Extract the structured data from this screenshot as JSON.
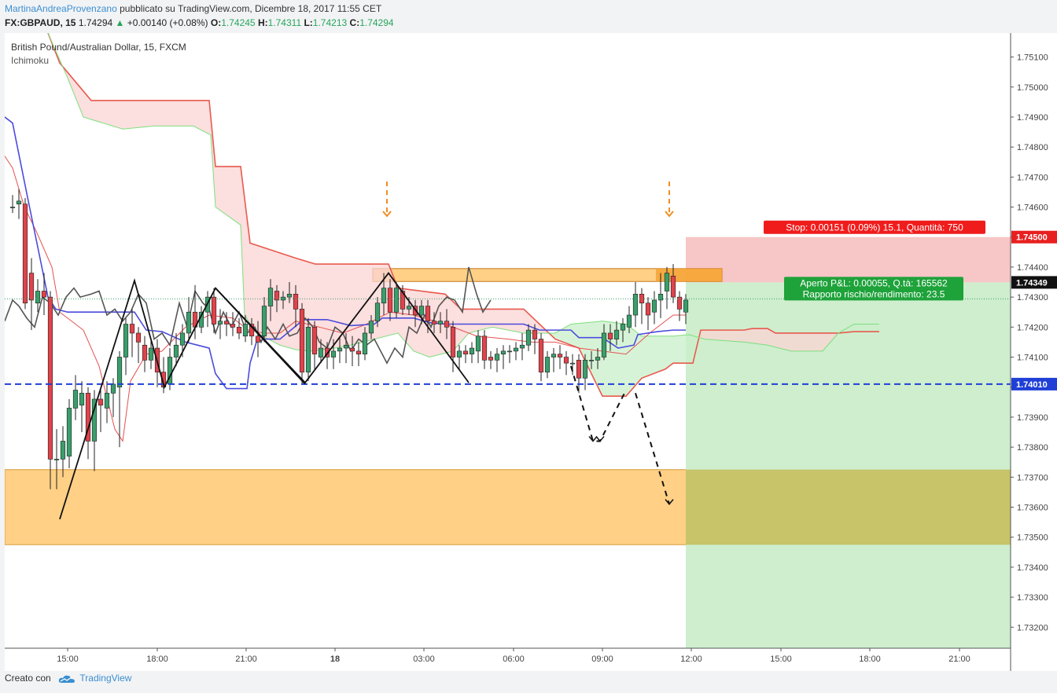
{
  "header": {
    "author": "MartinaAndreaProvenzano",
    "published": "pubblicato su TradingView.com, Dicembre 18, 2017 11:55 CET",
    "symbol": "FX:GBPAUD, 15",
    "price": "1.74294",
    "change": "+0.00140 (+0.08%)",
    "o_label": "O:",
    "o_val": "1.74245",
    "h_label": "H:",
    "h_val": "1.74311",
    "l_label": "L:",
    "l_val": "1.74213",
    "c_label": "C:",
    "c_val": "1.74294"
  },
  "legend": {
    "title": "British Pound/Australian Dollar, 15, FXCM",
    "indicator": "Ichimoku"
  },
  "footer": {
    "created": "Creato con",
    "brand": "TradingView"
  },
  "colors": {
    "bull": "#3a9e6b",
    "bear": "#e0434b",
    "conversion": "#4b4bdc",
    "base": "#e84d4d",
    "lagging": "#555555",
    "span_a": "#7ddf7d",
    "span_b": "#e85a4f",
    "zone": "#ffc870",
    "stop_zone": "#f7c6c6",
    "target_zone": "#c9ecc9",
    "entry_line": "#1f3fd6"
  },
  "chart_data": {
    "type": "candlestick",
    "title": "British Pound/Australian Dollar, 15, FXCM",
    "ylim": [
      1.7313,
      1.7518
    ],
    "y_ticks": [
      "1.75100",
      "1.75000",
      "1.74900",
      "1.74800",
      "1.74700",
      "1.74600",
      "1.74500",
      "1.74400",
      "1.74300",
      "1.74200",
      "1.74100",
      "1.74000",
      "1.73900",
      "1.73800",
      "1.73700",
      "1.73600",
      "1.73500",
      "1.73400",
      "1.73300",
      "1.73200"
    ],
    "x_ticks": [
      "15:00",
      "18:00",
      "21:00",
      "18",
      "03:00",
      "06:00",
      "09:00",
      "12:00",
      "15:00",
      "18:00",
      "21:00"
    ],
    "price_labels": [
      {
        "value": 1.745,
        "text": "1.74500",
        "color": "#e82020"
      },
      {
        "value": 1.74349,
        "text": "1.74349",
        "color": "#111111"
      },
      {
        "value": 1.7401,
        "text": "1.74010",
        "color": "#1f3fd6"
      }
    ],
    "entry_level": 1.7401,
    "stop": {
      "text": "Stop: 0.00151 (0.09%) 15.1, Quantità: 750",
      "top": 1.745,
      "bottom": 1.74349
    },
    "target": {
      "text1": "Aperto P&L: 0.00055, Q.tà: 165562",
      "text2": "Rapporto rischio/rendimento: 23.5",
      "top": 1.74349,
      "bottom": 1.7313
    },
    "supply_zone": {
      "top": 1.74395,
      "bottom": 1.74352
    },
    "demand_zone": {
      "top": 1.73725,
      "bottom": 1.73475
    }
  }
}
